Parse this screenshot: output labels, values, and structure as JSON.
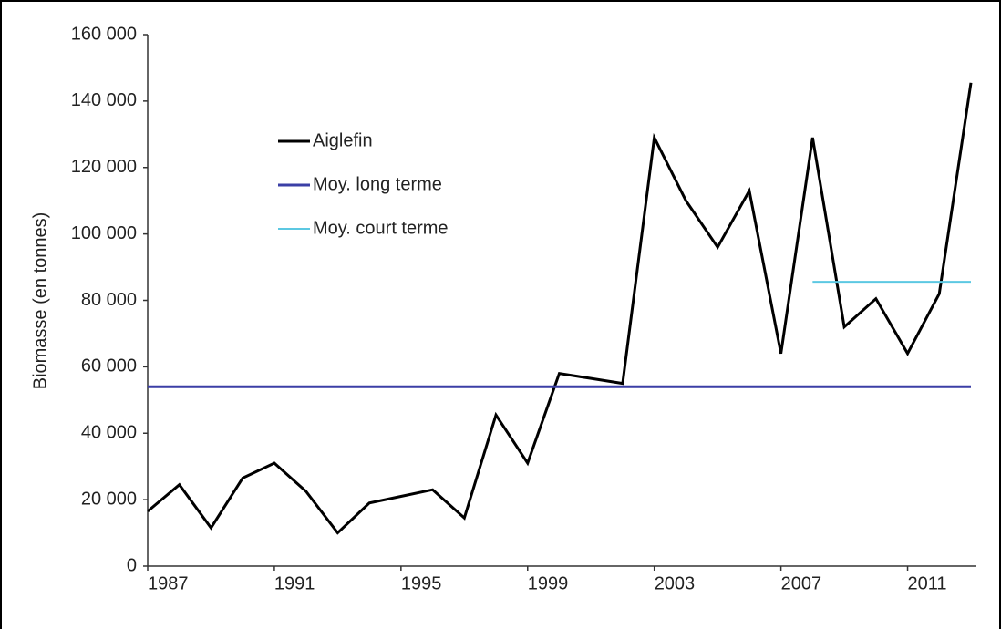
{
  "chart_data": {
    "type": "line",
    "y_label": "Biomasse (en tonnes)",
    "x": [
      1987,
      1988,
      1989,
      1990,
      1991,
      1992,
      1993,
      1994,
      1995,
      1996,
      1997,
      1998,
      1999,
      2000,
      2001,
      2002,
      2003,
      2004,
      2005,
      2006,
      2007,
      2008,
      2009,
      2010,
      2011,
      2012,
      2013
    ],
    "series": [
      {
        "name": "Aiglefin",
        "color": "#000000",
        "values": [
          16500,
          24500,
          11500,
          26500,
          31000,
          22500,
          10000,
          19000,
          21000,
          23000,
          14500,
          45500,
          31000,
          58000,
          56500,
          55000,
          129000,
          110000,
          96000,
          113000,
          64000,
          129000,
          72000,
          80500,
          64000,
          82000,
          145500
        ]
      },
      {
        "name": "Moy. long terme",
        "color": "#3b3fa6",
        "values": [
          54000,
          54000,
          54000,
          54000,
          54000,
          54000,
          54000,
          54000,
          54000,
          54000,
          54000,
          54000,
          54000,
          54000,
          54000,
          54000,
          54000,
          54000,
          54000,
          54000,
          54000,
          54000,
          54000,
          54000,
          54000,
          54000,
          54000
        ]
      },
      {
        "name": "Moy. court terme",
        "color": "#5cc8e2",
        "values": [
          null,
          null,
          null,
          null,
          null,
          null,
          null,
          null,
          null,
          null,
          null,
          null,
          null,
          null,
          null,
          null,
          null,
          null,
          null,
          null,
          null,
          85600,
          85600,
          85600,
          85600,
          85600,
          85600
        ]
      }
    ],
    "xlim": [
      1987,
      2013
    ],
    "xticks": [
      1987,
      1991,
      1995,
      1999,
      2003,
      2007,
      2011
    ],
    "ylim": [
      0,
      160000
    ],
    "yticks": [
      0,
      {
        "value": 20000,
        "label": "20 000"
      },
      {
        "value": 40000,
        "label": "40 000"
      },
      {
        "value": 60000,
        "label": "60 000"
      },
      {
        "value": 80000,
        "label": "80 000"
      },
      {
        "value": 100000,
        "label": "100 000"
      },
      {
        "value": 120000,
        "label": "120 000"
      },
      {
        "value": 140000,
        "label": "140 000"
      },
      {
        "value": 160000,
        "label": "160 000"
      }
    ],
    "legend_position": "upper left",
    "grid": false
  }
}
